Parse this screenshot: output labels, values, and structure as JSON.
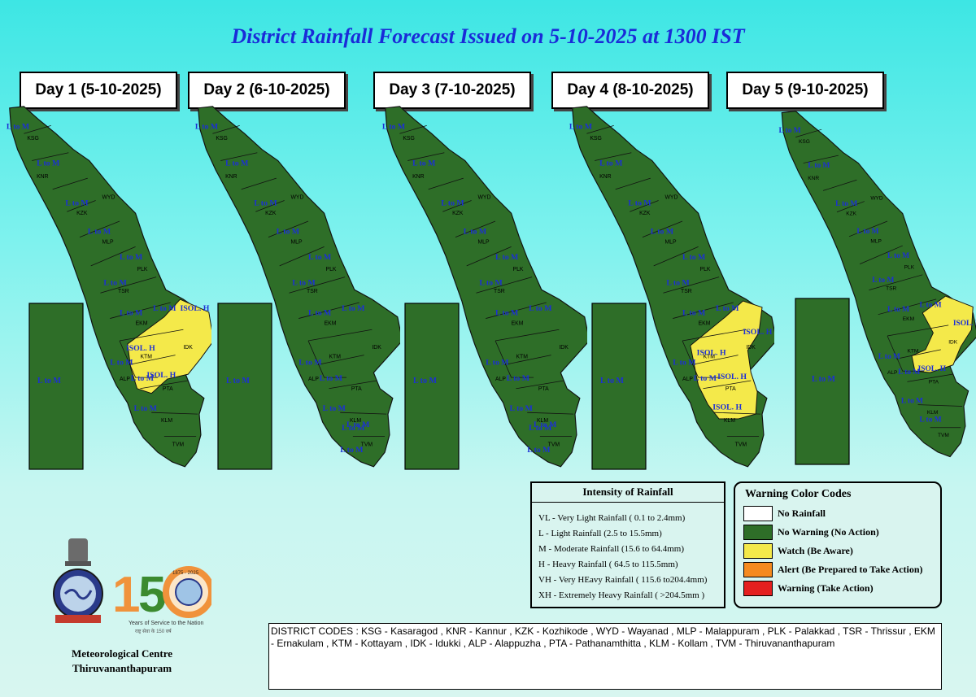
{
  "title": "District Rainfall Forecast Issued on  5-10-2025 at 1300 IST",
  "colors": {
    "no_rain": "#ffffff",
    "no_warning": "#2e6e28",
    "watch": "#f4e94a",
    "alert": "#f58a1f",
    "warning": "#e41f1f",
    "label_blue": "#1c2fd6"
  },
  "days": [
    {
      "label": "Day 1 (5-10-2025)",
      "rect_label": "L to M",
      "yellow": [
        "EKM-IDK-KTM-PTA"
      ],
      "isol": [
        "ISOL. H",
        "ISOL. H",
        "ISOL. H"
      ],
      "labels": [
        "L to M",
        "L to M",
        "L to M",
        "L to M",
        "L to M",
        "L to M",
        "L to M",
        "L to M",
        "L to M",
        "L to M",
        "L to M"
      ]
    },
    {
      "label": "Day 2 (6-10-2025)",
      "rect_label": "L to M",
      "yellow": [],
      "isol": [],
      "labels": [
        "L to M",
        "L to M",
        "L to M",
        "L to M",
        "L to M",
        "L to M",
        "L to M",
        "L to M",
        "L to M",
        "L to M",
        "L to M",
        "L to M",
        "L to M",
        "L to M"
      ]
    },
    {
      "label": "Day 3 (7-10-2025)",
      "rect_label": "L to M",
      "yellow": [],
      "isol": [],
      "labels": [
        "L to M",
        "L to M",
        "L to M",
        "L to M",
        "L to M",
        "L to M",
        "L to M",
        "L to M",
        "L to M",
        "L to M",
        "L to M",
        "L to M",
        "L to M",
        "L to M"
      ]
    },
    {
      "label": "Day 4 (8-10-2025)",
      "rect_label": "L to M",
      "yellow": [
        "EKM-IDK-KTM-ALP-PTA-KLM"
      ],
      "isol": [
        "ISOL. H",
        "ISOL. H",
        "ISOL. H",
        "ISOL. H"
      ],
      "labels": [
        "L to M",
        "L to M",
        "L to M",
        "L to M",
        "L to M",
        "L to M",
        "L to M",
        "L to M",
        "L to M",
        "L to M"
      ]
    },
    {
      "label": "Day 5 (9-10-2025)",
      "rect_label": "L to M",
      "yellow": [
        "IDK-PTA"
      ],
      "isol": [
        "ISOL. H",
        "ISOL. H"
      ],
      "labels": [
        "L to M",
        "L to M",
        "L to M",
        "L to M",
        "L to M",
        "L to M",
        "L to M",
        "L to M",
        "L to M",
        "L to M",
        "L to M",
        "L to M"
      ]
    }
  ],
  "district_codes_on_map": [
    "KSG",
    "KNR",
    "WYD",
    "KZK",
    "MLP",
    "PLK",
    "TSR",
    "EKM",
    "IDK",
    "KTM",
    "ALP",
    "PTA",
    "KLM",
    "TVM"
  ],
  "intensity": {
    "heading": "Intensity of Rainfall",
    "rows": [
      "VL - Very Light Rainfall ( 0.1 to 2.4mm)",
      "L  - Light Rainfall (2.5 to 15.5mm)",
      "M  - Moderate Rainfall (15.6 to 64.4mm)",
      "H  - Heavy Rainfall ( 64.5 to 115.5mm)",
      "VH - Very HEavy Rainfall ( 115.6 to204.4mm)",
      "XH - Extremely Heavy Rainfall ( >204.5mm )"
    ]
  },
  "warning_codes": {
    "heading": "Warning Color Codes",
    "rows": [
      {
        "label": "No Rainfall",
        "color": "#ffffff"
      },
      {
        "label": "No Warning (No Action)",
        "color": "#2e6e28"
      },
      {
        "label": "Watch (Be Aware)",
        "color": "#f4e94a"
      },
      {
        "label": "Alert (Be Prepared to Take Action)",
        "color": "#f58a1f"
      },
      {
        "label": "Warning (Take Action)",
        "color": "#e41f1f"
      }
    ]
  },
  "district_codes_text": "DISTRICT CODES : KSG - Kasaragod , KNR - Kannur , KZK - Kozhikode , WYD - Wayanad , MLP - Malappuram , PLK - Palakkad , TSR - Thrissur , EKM - Ernakulam , KTM - Kottayam , IDK - Idukki , ALP - Alappuzha ,      PTA - Pathanamthitta , KLM - Kollam , TVM - Thiruvananthapuram",
  "logo": {
    "years_text": "Years of Service to the Nation",
    "big_number": "150",
    "years_range": "1875 - 2025"
  },
  "centre": {
    "line1": "Meteorological Centre",
    "line2": "Thiruvananthapuram"
  }
}
